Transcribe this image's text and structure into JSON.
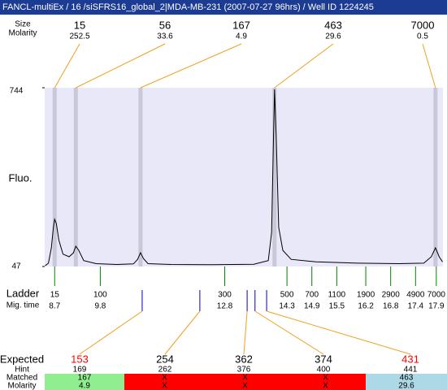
{
  "header": {
    "title": "FANCL-multiEx / 16 /siSFRS16_global_2|MDA-MB-231 (2007-07-27 96hrs) / Well ID 1224245"
  },
  "peaks": {
    "labels": [
      "Size",
      "Molarity"
    ],
    "sizes": [
      15,
      56,
      167,
      463,
      7000
    ],
    "molarities": [
      252.5,
      33.6,
      4.9,
      29.6,
      0.5
    ]
  },
  "chart_data": {
    "type": "line",
    "y_label": "Fluo.",
    "x": [
      8.47,
      8.55,
      8.62,
      8.67,
      8.7,
      8.74,
      8.8,
      8.9,
      9.05,
      9.15,
      9.21,
      9.28,
      9.4,
      9.7,
      10.2,
      10.6,
      10.7,
      10.77,
      10.84,
      10.95,
      11.5,
      12.5,
      13.5,
      13.85,
      13.93,
      13.97,
      14.0,
      14.04,
      14.1,
      14.2,
      14.4,
      15,
      16,
      17,
      17.6,
      17.78,
      17.88,
      17.97,
      18.05
    ],
    "values": [
      50,
      60,
      120,
      200,
      231,
      215,
      150,
      95,
      85,
      100,
      126,
      110,
      70,
      58,
      55,
      57,
      75,
      101,
      78,
      58,
      55,
      54,
      56,
      70,
      180,
      500,
      738,
      560,
      200,
      110,
      75,
      65,
      60,
      58,
      60,
      85,
      120,
      85,
      65
    ],
    "color": "#000000",
    "peak_times": [
      8.7,
      9.21,
      10.77,
      14.0,
      17.88
    ],
    "xlim": [
      8.46,
      18.06
    ],
    "ylim": [
      47,
      744
    ],
    "yticks": [
      47,
      744
    ]
  },
  "ladder": {
    "labels": [
      "Ladder",
      "Mig. time"
    ],
    "sizes": [
      15,
      100,
      300,
      500,
      700,
      1100,
      1900,
      2900,
      4900,
      7000
    ],
    "times": [
      8.7,
      9.8,
      12.8,
      14.3,
      14.9,
      15.5,
      16.2,
      16.8,
      17.4,
      17.9
    ]
  },
  "expected": {
    "labels": [
      "Expected",
      "Hint",
      "Matched",
      "Molarity"
    ],
    "hint_times": [
      10.81,
      12.2,
      13.34,
      13.53,
      13.81
    ],
    "expected": [
      153,
      254,
      362,
      374,
      431
    ],
    "highlight": [
      true,
      false,
      false,
      false,
      true
    ],
    "hint": [
      169,
      262,
      376,
      400,
      441
    ],
    "matched": [
      "167",
      "X",
      "X",
      "X",
      "463"
    ],
    "molarity": [
      "4.9",
      "X",
      "X",
      "X",
      "29.6"
    ],
    "status": [
      "matched",
      "missing",
      "missing",
      "missing",
      "unexpected"
    ]
  }
}
